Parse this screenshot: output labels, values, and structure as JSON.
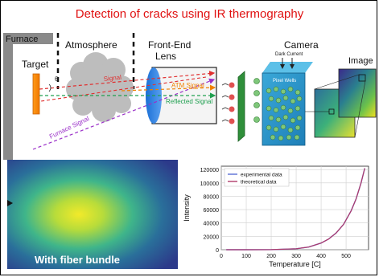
{
  "title": "Detection of cracks using IR thermography",
  "diagram": {
    "furnace": "Furnace",
    "atmosphere": "Atmosphere",
    "front_end_lens_1": "Front-End",
    "front_end_lens_2": "Lens",
    "camera": "Camera",
    "target": "Target",
    "image": "Image",
    "theta": "θ",
    "signal": "Signal",
    "furnace_signal": "Furnace Signal",
    "atm_signal": "ATM Signal",
    "reflected_signal": "Reflected Signal",
    "dark_current": "Dark Current",
    "pixel_wells": "Pixel Wells"
  },
  "fiber_bundle_caption": "With fiber bundle",
  "chart_data": {
    "type": "line",
    "xlabel": "Temperature [C]",
    "ylabel": "Intensity",
    "xlim": [
      0,
      590
    ],
    "ylim": [
      0,
      125000
    ],
    "xticks": [
      0,
      100,
      200,
      300,
      400,
      500
    ],
    "yticks": [
      0,
      20000,
      40000,
      60000,
      80000,
      100000,
      120000
    ],
    "grid": true,
    "legend_position": "top-left",
    "series": [
      {
        "name": "experimental data",
        "color": "#5b6fd6",
        "x": [
          20,
          100,
          200,
          300,
          350,
          400,
          430,
          460,
          490,
          520,
          540,
          560,
          575
        ],
        "y": [
          0,
          0,
          100,
          1500,
          4000,
          10000,
          16000,
          25000,
          38000,
          58000,
          76000,
          100000,
          122000
        ]
      },
      {
        "name": "theoretical data",
        "color": "#b03a6a",
        "x": [
          20,
          100,
          200,
          300,
          350,
          400,
          430,
          460,
          490,
          520,
          540,
          560,
          575
        ],
        "y": [
          0,
          0,
          100,
          1500,
          4000,
          10000,
          16000,
          25000,
          38000,
          58000,
          76000,
          100000,
          122000
        ]
      }
    ]
  }
}
